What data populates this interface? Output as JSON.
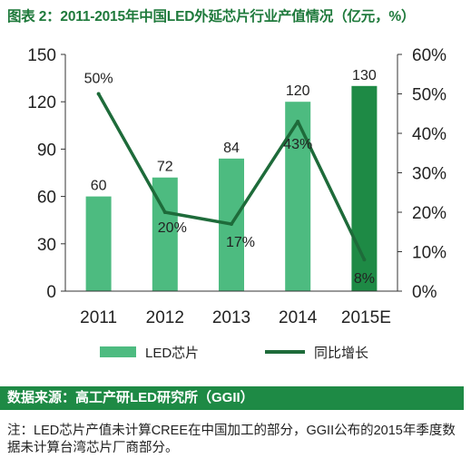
{
  "title": "图表 2：2011-2015年中国LED外延芯片行业产值情况（亿元，%）",
  "legend": {
    "bar_label": "LED芯片",
    "line_label": "同比增长"
  },
  "source": "数据来源：高工产研LED研究所（GGII）",
  "note": "注：LED芯片产值未计算CREE在中国加工的部分，GGII公布的2015年季度数据未计算台湾芯片厂商部分。",
  "colors": {
    "bar": "#4dbb80",
    "bar_highlight": "#1e8a45",
    "line": "#1e6b3a",
    "title": "#1f7a3c"
  },
  "chart_data": {
    "type": "bar",
    "categories": [
      "2011",
      "2012",
      "2013",
      "2014",
      "2015E"
    ],
    "series": [
      {
        "name": "LED芯片",
        "type": "bar",
        "axis": "left",
        "values": [
          60,
          72,
          84,
          120,
          130
        ],
        "labels": [
          "60",
          "72",
          "84",
          "120",
          "130"
        ]
      },
      {
        "name": "同比增长",
        "type": "line",
        "axis": "right",
        "values": [
          50,
          20,
          17,
          43,
          8
        ],
        "labels": [
          "50%",
          "20%",
          "17%",
          "43%",
          "8%"
        ]
      }
    ],
    "ylim": [
      0,
      150
    ],
    "yticks": [
      "0",
      "30",
      "60",
      "90",
      "120",
      "150"
    ],
    "y2lim": [
      0,
      60
    ],
    "y2ticks": [
      "0%",
      "10%",
      "20%",
      "30%",
      "40%",
      "50%",
      "60%"
    ],
    "grid": false,
    "legend_position": "bottom"
  }
}
